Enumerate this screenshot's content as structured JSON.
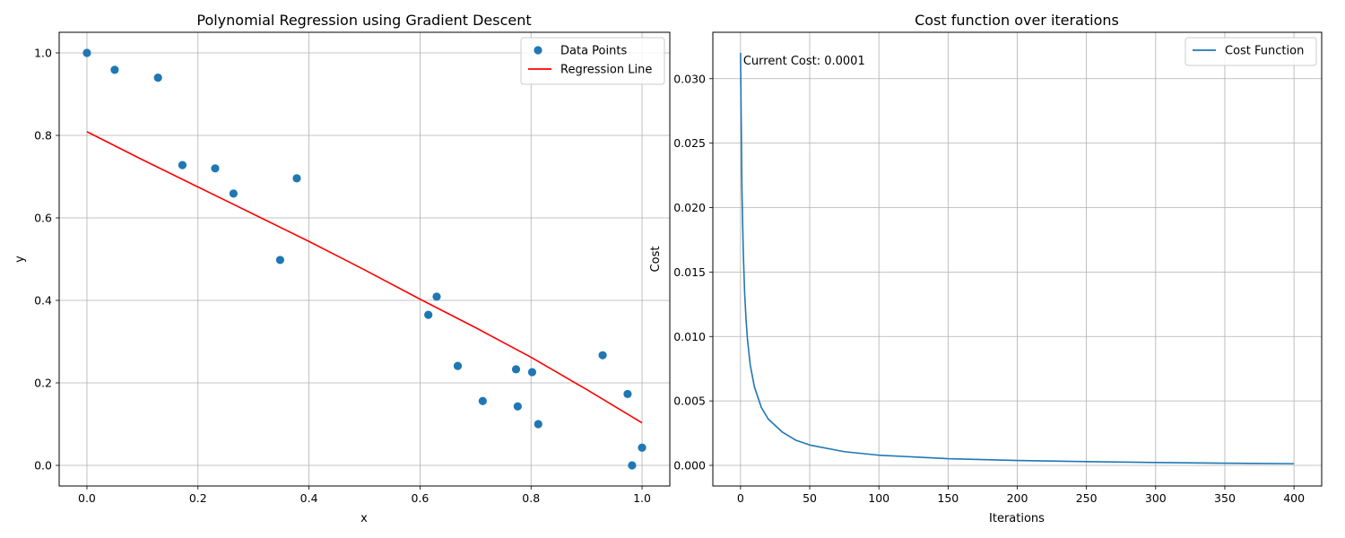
{
  "chart_data": [
    {
      "type": "scatter",
      "title": "Polynomial Regression using Gradient Descent",
      "xlabel": "x",
      "ylabel": "y",
      "xlim": [
        -0.05,
        1.05
      ],
      "ylim": [
        -0.05,
        1.05
      ],
      "xticks": [
        0.0,
        0.2,
        0.4,
        0.6,
        0.8,
        1.0
      ],
      "xtick_labels": [
        "0.0",
        "0.2",
        "0.4",
        "0.6",
        "0.8",
        "1.0"
      ],
      "yticks": [
        0.0,
        0.2,
        0.4,
        0.6,
        0.8,
        1.0
      ],
      "ytick_labels": [
        "0.0",
        "0.2",
        "0.4",
        "0.6",
        "0.8",
        "1.0"
      ],
      "grid": true,
      "legend": "top-right",
      "series": [
        {
          "name": "Data Points",
          "kind": "scatter",
          "color": "#1f77b4",
          "x": [
            0.0,
            0.05,
            0.128,
            0.172,
            0.231,
            0.264,
            0.348,
            0.378,
            0.615,
            0.63,
            0.668,
            0.713,
            0.773,
            0.776,
            0.802,
            0.813,
            0.929,
            0.974,
            0.982,
            1.0
          ],
          "y": [
            1.0,
            0.959,
            0.94,
            0.728,
            0.72,
            0.659,
            0.498,
            0.696,
            0.365,
            0.409,
            0.241,
            0.156,
            0.233,
            0.143,
            0.226,
            0.1,
            0.267,
            0.173,
            0.0,
            0.043
          ]
        },
        {
          "name": "Regression Line",
          "kind": "line",
          "color": "#ff0000",
          "x": [
            0.0,
            0.1,
            0.2,
            0.3,
            0.4,
            0.5,
            0.6,
            0.7,
            0.8,
            0.9,
            1.0
          ],
          "y": [
            0.809,
            0.741,
            0.675,
            0.609,
            0.543,
            0.474,
            0.403,
            0.334,
            0.262,
            0.184,
            0.103
          ]
        }
      ]
    },
    {
      "type": "line",
      "title": "Cost function over iterations",
      "xlabel": "Iterations",
      "ylabel": "Cost",
      "xlim": [
        -20,
        420
      ],
      "ylim": [
        -0.0016,
        0.0336
      ],
      "xticks": [
        0,
        50,
        100,
        150,
        200,
        250,
        300,
        350,
        400
      ],
      "xtick_labels": [
        "0",
        "50",
        "100",
        "150",
        "200",
        "250",
        "300",
        "350",
        "400"
      ],
      "yticks": [
        0.0,
        0.005,
        0.01,
        0.015,
        0.02,
        0.025,
        0.03
      ],
      "ytick_labels": [
        "0.000",
        "0.005",
        "0.010",
        "0.015",
        "0.020",
        "0.025",
        "0.030"
      ],
      "grid": true,
      "legend": "top-right",
      "annotation": "Current Cost: 0.0001",
      "series": [
        {
          "name": "Cost Function",
          "kind": "line",
          "color": "#1f77b4",
          "x": [
            0,
            1,
            2,
            3,
            4,
            5,
            7,
            10,
            15,
            20,
            30,
            40,
            50,
            75,
            100,
            150,
            200,
            250,
            300,
            350,
            400
          ],
          "y": [
            0.032,
            0.0215,
            0.0165,
            0.0133,
            0.0113,
            0.0098,
            0.0078,
            0.0061,
            0.0045,
            0.0036,
            0.0026,
            0.00195,
            0.00158,
            0.00106,
            0.00079,
            0.00052,
            0.00038,
            0.00029,
            0.00022,
            0.00017,
            0.00013
          ]
        }
      ]
    }
  ]
}
